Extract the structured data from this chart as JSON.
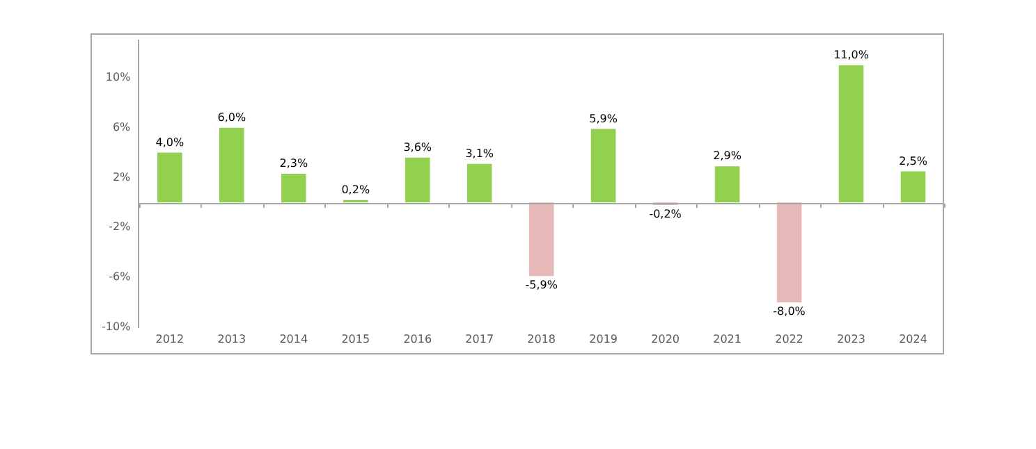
{
  "chart_data": {
    "type": "bar",
    "categories": [
      "2012",
      "2013",
      "2014",
      "2015",
      "2016",
      "2017",
      "2018",
      "2019",
      "2020",
      "2021",
      "2022",
      "2023",
      "2024"
    ],
    "values": [
      4.0,
      6.0,
      2.3,
      0.2,
      3.6,
      3.1,
      -5.9,
      5.9,
      -0.2,
      2.9,
      -8.0,
      11.0,
      2.5
    ],
    "colors": [
      "#92d050",
      "#92d050",
      "#92d050",
      "#92d050",
      "#92d050",
      "#92d050",
      "#e6b8b7",
      "#92d050",
      "#e6b8b7",
      "#92d050",
      "#e6b8b7",
      "#92d050",
      "#92d050"
    ],
    "value_labels": [
      "4,0%",
      "6,0%",
      "2,3%",
      "0,2%",
      "3,6%",
      "3,1%",
      "-5,9%",
      "5,9%",
      "-0,2%",
      "2,9%",
      "-8,0%",
      "11,0%",
      "2,5%"
    ],
    "ylim": [
      -10,
      13
    ],
    "yticks": [
      {
        "value": -10,
        "label": "-10%"
      },
      {
        "value": -6,
        "label": "-6%"
      },
      {
        "value": -2,
        "label": "-2%"
      },
      {
        "value": 2,
        "label": "2%"
      },
      {
        "value": 6,
        "label": "6%"
      },
      {
        "value": 10,
        "label": "10%"
      }
    ]
  }
}
